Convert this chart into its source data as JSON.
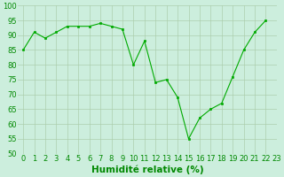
{
  "x": [
    0,
    1,
    2,
    3,
    4,
    5,
    6,
    7,
    8,
    9,
    10,
    11,
    12,
    13,
    14,
    15,
    16,
    17,
    18,
    19,
    20,
    21,
    22
  ],
  "y": [
    85,
    91,
    89,
    91,
    93,
    93,
    93,
    94,
    93,
    92,
    80,
    88,
    74,
    75,
    69,
    55,
    62,
    65,
    67,
    76,
    85,
    91,
    95
  ],
  "line_color": "#00aa00",
  "marker_color": "#00aa00",
  "bg_color": "#cceedd",
  "grid_color": "#aaccaa",
  "xlabel": "Humidité relative (%)",
  "xlabel_color": "#008800",
  "ylim": [
    50,
    100
  ],
  "xlim": [
    -0.5,
    23
  ],
  "yticks": [
    50,
    55,
    60,
    65,
    70,
    75,
    80,
    85,
    90,
    95,
    100
  ],
  "xtick_labels": [
    "0",
    "1",
    "2",
    "3",
    "4",
    "5",
    "6",
    "7",
    "8",
    "9",
    "10",
    "11",
    "12",
    "13",
    "14",
    "15",
    "16",
    "17",
    "18",
    "19",
    "20",
    "21",
    "22",
    "23"
  ],
  "tick_color": "#008800",
  "tick_fontsize": 6,
  "xlabel_fontsize": 7.5
}
